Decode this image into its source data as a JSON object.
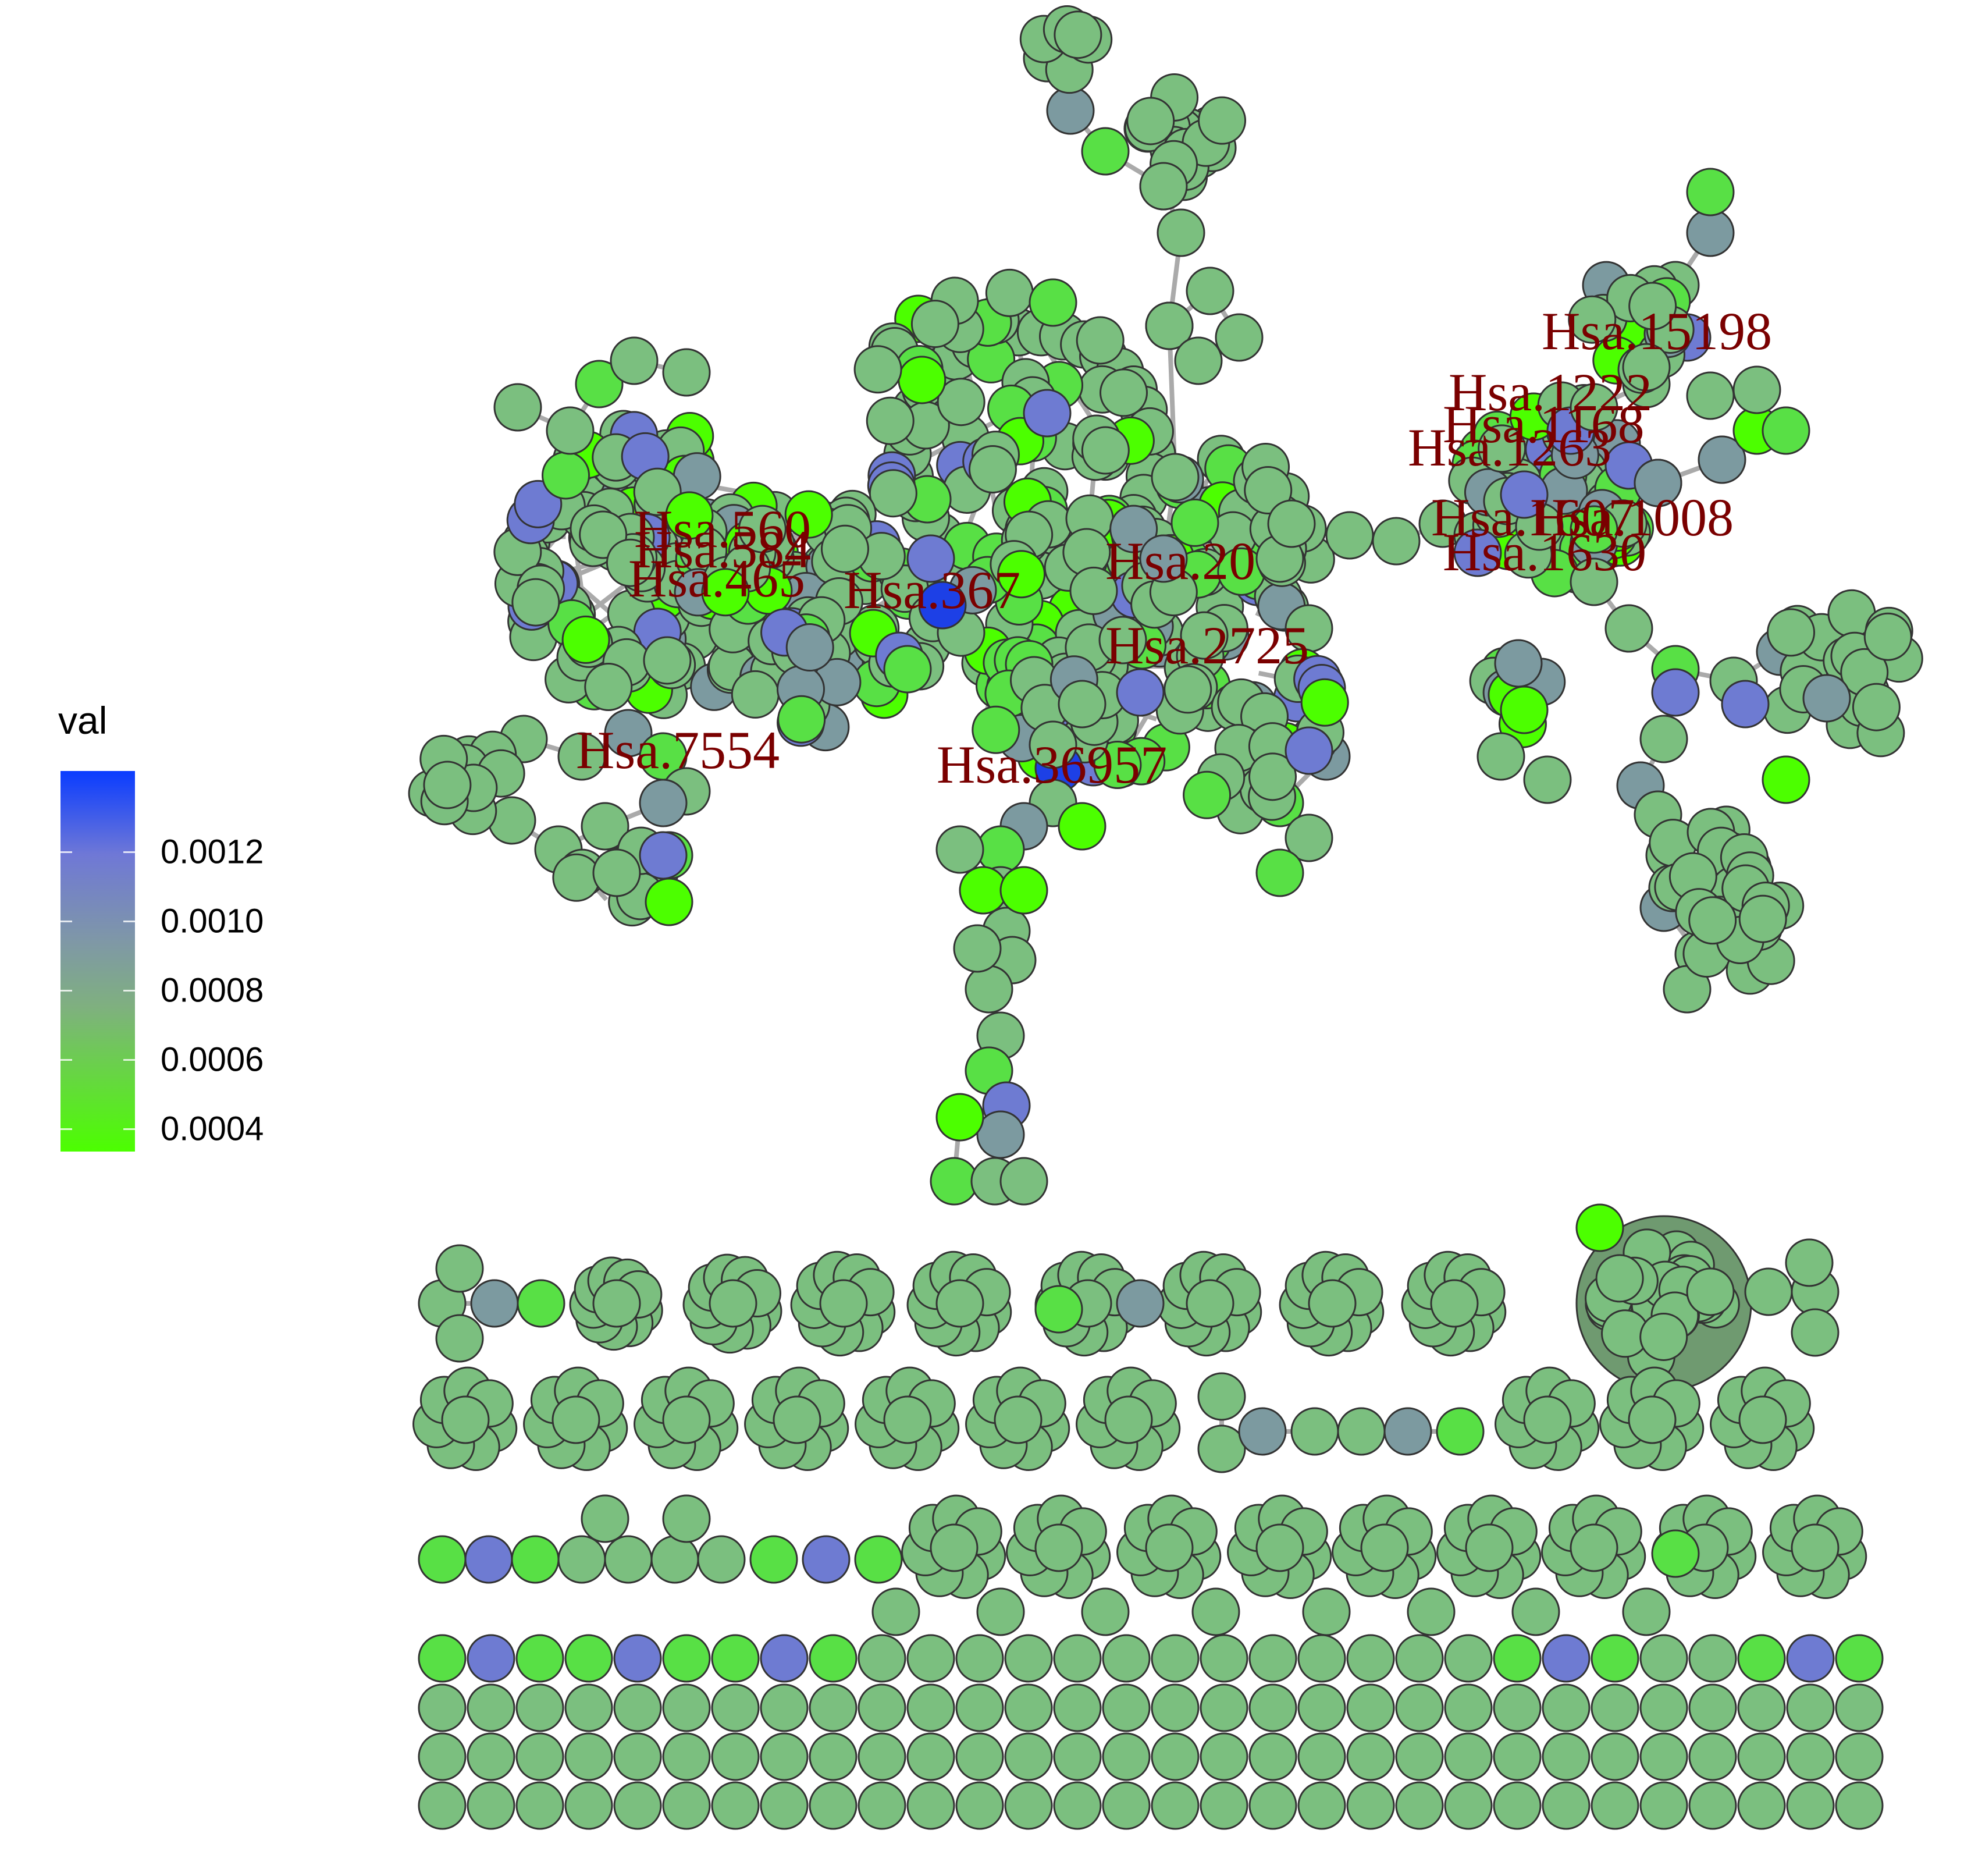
{
  "legend": {
    "title": "val",
    "color_low": "#4cff00",
    "color_mid": "#7fb07f",
    "color_high": "#0a3cff",
    "ticks": [
      "0.0012",
      "0.0010",
      "0.0008",
      "0.0006",
      "0.0004"
    ]
  },
  "colors": {
    "node_default": "#7bbf7f",
    "node_bright": "#58e045",
    "node_lime": "#4cff00",
    "node_blue": "#6e7bd2",
    "node_slate": "#7c9aa0",
    "node_deep_blue": "#1d40e6",
    "node_stroke": "#333333",
    "edge": "#aaaaaa",
    "label": "#7a0000"
  },
  "labels": [
    "Hsa.15198",
    "Hsa.1222",
    "Hsa.1168",
    "Hsa.1263",
    "Hsa.1607",
    "Hsa.1008",
    "Hsa.1630",
    "Hsa.560",
    "Hsa.584",
    "Hsa.465",
    "Hsa.367",
    "Hsa.20",
    "Hsa.2725",
    "Hsa.7554",
    "Hsa.36957"
  ]
}
